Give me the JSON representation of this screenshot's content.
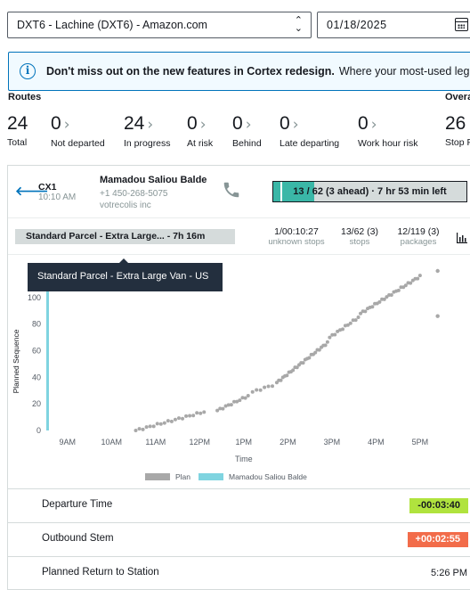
{
  "station_select": {
    "value": "DXT6 - Lachine (DXT6) - Amazon.com"
  },
  "date_field": {
    "value": "01/18/2025"
  },
  "banner": {
    "bold": "Don't miss out on the new features in Cortex redesign.",
    "rest": "Where your most-used legacy-"
  },
  "routes": {
    "label": "Routes",
    "overall_label": "Overa",
    "stats": [
      {
        "value": "24",
        "label": "Total",
        "arrow": false
      },
      {
        "value": "0",
        "label": "Not departed",
        "arrow": true
      },
      {
        "value": "24",
        "label": "In progress",
        "arrow": true
      },
      {
        "value": "0",
        "label": "At risk",
        "arrow": true
      },
      {
        "value": "0",
        "label": "Behind",
        "arrow": true
      },
      {
        "value": "0",
        "label": "Late departing",
        "arrow": true
      },
      {
        "value": "0",
        "label": "Work hour risk",
        "arrow": true
      },
      {
        "value": "26",
        "label": "Stop P",
        "arrow": false
      }
    ]
  },
  "route": {
    "code": "CX1",
    "time": "10:10 AM",
    "driver_name": "Mamadou Saliou Balde",
    "phone": "+1 450-268-5075",
    "company": "votrecolis inc",
    "progress_text": "13 / 62 (3 ahead) · 7 hr 53 min left",
    "progress_fraction": 0.21,
    "progress_marker_fraction": 0.035
  },
  "summary": {
    "plan_chip": "Standard Parcel - Extra Large...  - 7h 16m",
    "unknown_stops": {
      "value": "1/00:10:27",
      "label": "unknown stops"
    },
    "stops": {
      "value": "13/62 (3)",
      "label": "stops"
    },
    "packages": {
      "value": "12/119 (3)",
      "label": "packages"
    }
  },
  "tooltip": {
    "text": "Standard Parcel - Extra Large Van - US"
  },
  "chart_data": {
    "type": "scatter",
    "title": "",
    "xlabel": "Time",
    "ylabel": "Planned Sequence",
    "x_ticks": [
      "9AM",
      "10AM",
      "11AM",
      "12PM",
      "1PM",
      "2PM",
      "3PM",
      "4PM",
      "5PM"
    ],
    "y_ticks": [
      0,
      20,
      40,
      60,
      80,
      100
    ],
    "xlim_hours": [
      8.5,
      17.75
    ],
    "ylim": [
      0,
      120
    ],
    "legend": [
      "Plan",
      "Mamadou Saliou Balde"
    ],
    "legend_placement": "bottom",
    "colors": {
      "plan": "#a8a8a8",
      "actual": "#7fd4e0"
    },
    "series": [
      {
        "name": "Plan",
        "segments": [
          {
            "x_start": 10.55,
            "x_end": 12.1,
            "y_start": 0,
            "y_end": 14,
            "points": 20
          },
          {
            "x_start": 12.4,
            "x_end": 13.1,
            "y_start": 15,
            "y_end": 26,
            "points": 12
          },
          {
            "x_start": 13.2,
            "x_end": 13.65,
            "y_start": 29,
            "y_end": 34,
            "points": 6
          },
          {
            "x_start": 13.75,
            "x_end": 14.9,
            "y_start": 36,
            "y_end": 66,
            "points": 26
          },
          {
            "x_start": 14.95,
            "x_end": 15.6,
            "y_start": 70,
            "y_end": 85,
            "points": 12
          },
          {
            "x_start": 15.65,
            "x_end": 17.0,
            "y_start": 88,
            "y_end": 116,
            "points": 26
          }
        ],
        "outliers": [
          {
            "x": 17.4,
            "y": 120
          },
          {
            "x": 17.4,
            "y": 86
          }
        ]
      },
      {
        "name": "Mamadou Saliou Balde",
        "bar": {
          "x": 8.55,
          "y_start": 0,
          "y_end": 112
        }
      }
    ]
  },
  "metrics": {
    "departure": {
      "label": "Departure Time",
      "value": "-00:03:40",
      "color": "#b0e33e"
    },
    "outbound": {
      "label": "Outbound Stem",
      "value": "+00:02:55",
      "color": "#f26c4a"
    },
    "planned_return": {
      "label": "Planned Return to Station",
      "value": "5:26 PM"
    }
  }
}
